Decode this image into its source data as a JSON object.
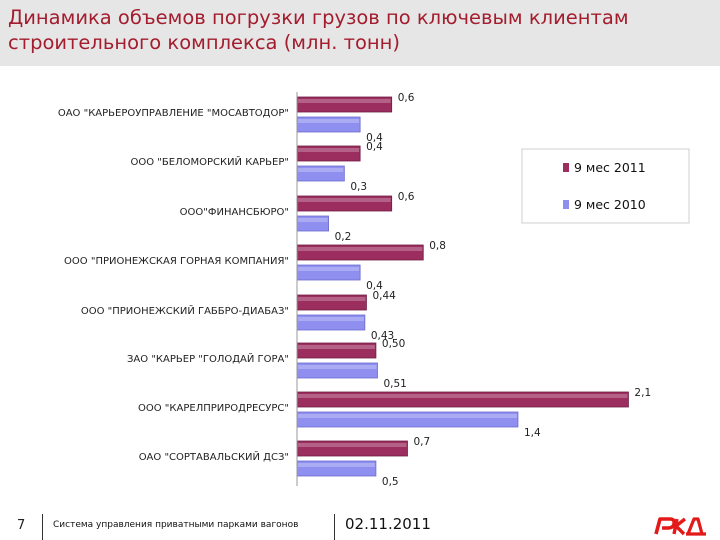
{
  "title": "Динамика объемов погрузки грузов по ключевым клиентам строительного комплекса (млн. тонн)",
  "chart_data": {
    "type": "bar",
    "orientation": "horizontal",
    "categories": [
      "ОАО \"КАРЬЕРОУПРАВЛЕНИЕ \"МОСАВТОДОР\"",
      "ООО \"БЕЛОМОРСКИЙ КАРЬЕР\"",
      "ООО\"ФИНАНСБЮРО\"",
      "ООО \"ПРИОНЕЖСКАЯ ГОРНАЯ КОМПАНИЯ\"",
      "ООО \"ПРИОНЕЖСКИЙ ГАББРО-ДИАБАЗ\"",
      "ЗАО \"КАРЬЕР \"ГОЛОДАЙ ГОРА\"",
      "ООО \"КАРЕЛПРИРОДРЕСУРС\"",
      "ОАО \"СОРТАВАЛЬСКИЙ ДСЗ\""
    ],
    "series": [
      {
        "name": "9 мес 2011",
        "color": "#9b2d5f",
        "values": [
          0.6,
          0.4,
          0.6,
          0.8,
          0.44,
          0.5,
          2.1,
          0.7
        ],
        "labels": [
          "0,6",
          "0,4",
          "0,6",
          "0,8",
          "0,44",
          "0,50",
          "2,1",
          "0,7"
        ]
      },
      {
        "name": "9 мес 2010",
        "color": "#8f8ff0",
        "values": [
          0.4,
          0.3,
          0.2,
          0.4,
          0.43,
          0.51,
          1.4,
          0.5
        ],
        "labels": [
          "0,4",
          "0,3",
          "0,2",
          "0,4",
          "0,43",
          "0,51",
          "1,4",
          "0,5"
        ]
      }
    ],
    "xlim": [
      0,
      2.3
    ],
    "legend": "right"
  },
  "footer": {
    "page": "7",
    "text": "Система управления приватными парками вагонов",
    "date": "02.11.2011"
  },
  "logo": {
    "name": "rzd-logo-icon",
    "color": "#e21a1a"
  }
}
